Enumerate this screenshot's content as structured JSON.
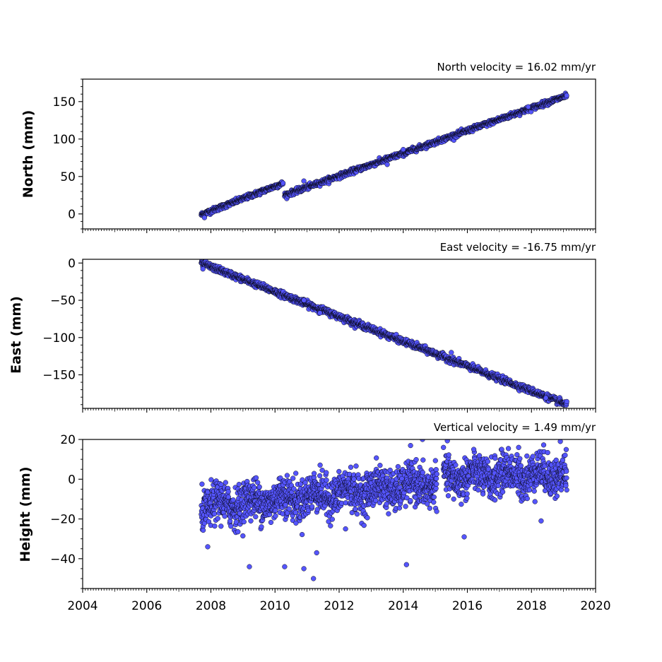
{
  "chart_data": [
    {
      "type": "scatter",
      "title": "North velocity = 16.02 mm/yr",
      "ylabel": "North (mm)",
      "xlim": [
        2004,
        2020
      ],
      "ylim": [
        -20,
        180
      ],
      "yticks": [
        0,
        50,
        100,
        150
      ],
      "x_tick_labels_visible": false,
      "grid": false,
      "marker_color": "#5555ff",
      "marker_edge": "#000000",
      "trend": {
        "segments": [
          {
            "x_start": 2007.7,
            "x_end": 2010.25,
            "y_start": -1,
            "y_end": 41
          },
          {
            "x_start": 2010.3,
            "x_end": 2019.1,
            "y_start": 25,
            "y_end": 158
          }
        ],
        "noise_mm": 1.6
      },
      "outliers": [
        [
          2010.9,
          44
        ],
        [
          2013.5,
          66
        ],
        [
          2014.0,
          86
        ],
        [
          2017.9,
          143
        ],
        [
          2007.8,
          -5
        ]
      ]
    },
    {
      "type": "scatter",
      "title": "East velocity = -16.75 mm/yr",
      "ylabel": "East (mm)",
      "xlim": [
        2004,
        2020
      ],
      "ylim": [
        -195,
        5
      ],
      "yticks": [
        0,
        -50,
        -100,
        -150
      ],
      "x_tick_labels_visible": false,
      "grid": false,
      "marker_color": "#5555ff",
      "marker_edge": "#000000",
      "trend": {
        "segments": [
          {
            "x_start": 2007.7,
            "x_end": 2019.1,
            "y_start": 0,
            "y_end": -190
          }
        ],
        "noise_mm": 2.0
      },
      "outliers": [
        [
          2007.75,
          -8
        ],
        [
          2010.9,
          -50
        ],
        [
          2011.4,
          -67
        ],
        [
          2018.45,
          -181
        ],
        [
          2015.5,
          -120
        ]
      ]
    },
    {
      "type": "scatter",
      "title": "Vertical velocity = 1.49 mm/yr",
      "ylabel": "Height (mm)",
      "xlabel": "",
      "xlim": [
        2004,
        2020
      ],
      "ylim": [
        -55,
        20
      ],
      "yticks": [
        20,
        0,
        -20,
        -40
      ],
      "xticks": [
        2004,
        2006,
        2008,
        2010,
        2012,
        2014,
        2016,
        2018,
        2020
      ],
      "x_tick_labels_visible": true,
      "grid": false,
      "marker_color": "#5555ff",
      "marker_edge": "#000000",
      "trend": {
        "segments": [
          {
            "x_start": 2007.7,
            "x_end": 2015.05,
            "y_start": -14,
            "y_end": -2
          },
          {
            "x_start": 2015.25,
            "x_end": 2019.1,
            "y_start": 1,
            "y_end": 3
          }
        ],
        "noise_mm": 5.0
      },
      "outliers": [
        [
          2009.2,
          -44
        ],
        [
          2010.3,
          -44
        ],
        [
          2010.9,
          -45
        ],
        [
          2011.2,
          -50
        ],
        [
          2014.1,
          -43
        ],
        [
          2011.3,
          -37
        ],
        [
          2007.9,
          -34
        ],
        [
          2014.6,
          20
        ],
        [
          2018.9,
          19
        ],
        [
          2016.2,
          15
        ],
        [
          2017.6,
          16
        ],
        [
          2015.9,
          -29
        ],
        [
          2018.3,
          -21
        ],
        [
          2012.2,
          -25
        ]
      ]
    }
  ]
}
